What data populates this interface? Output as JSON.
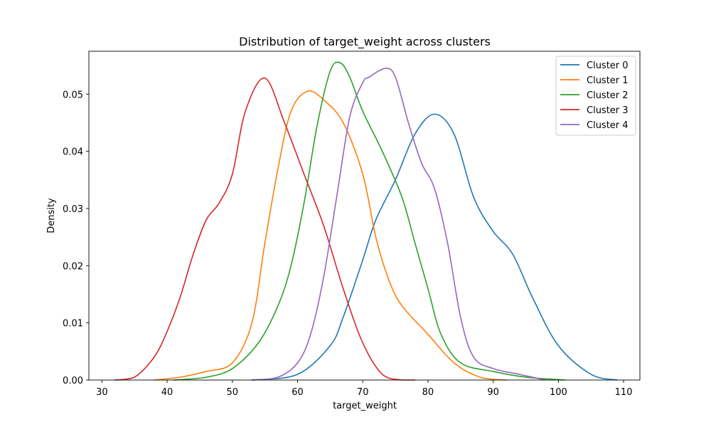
{
  "chart_data": {
    "type": "line",
    "title": "Distribution of target_weight across clusters",
    "xlabel": "target_weight",
    "ylabel": "Density",
    "xlim": [
      28,
      112.5
    ],
    "ylim": [
      0,
      0.0575
    ],
    "x_ticks": [
      30,
      40,
      50,
      60,
      70,
      80,
      90,
      100,
      110
    ],
    "y_ticks": [
      0.0,
      0.01,
      0.02,
      0.03,
      0.04,
      0.05
    ],
    "y_tick_labels": [
      "0.00",
      "0.01",
      "0.02",
      "0.03",
      "0.04",
      "0.05"
    ],
    "grid": false,
    "legend_position": "top-right",
    "series": [
      {
        "name": "Cluster 0",
        "color": "#1f77b4",
        "x": [
          53,
          60,
          65,
          67,
          70,
          72,
          75,
          78,
          81,
          84,
          87,
          90,
          93,
          96,
          100,
          105,
          109
        ],
        "y": [
          0.0,
          0.001,
          0.006,
          0.011,
          0.021,
          0.028,
          0.035,
          0.043,
          0.0465,
          0.043,
          0.032,
          0.026,
          0.022,
          0.0145,
          0.006,
          0.001,
          0.0
        ]
      },
      {
        "name": "Cluster 1",
        "color": "#ff7f0e",
        "x": [
          38,
          42,
          46,
          50,
          53,
          55,
          57,
          59,
          61.5,
          64,
          67,
          70,
          72,
          74,
          76,
          80,
          84,
          88,
          92
        ],
        "y": [
          0.0,
          0.0005,
          0.0015,
          0.003,
          0.01,
          0.024,
          0.037,
          0.047,
          0.0505,
          0.049,
          0.045,
          0.036,
          0.025,
          0.0175,
          0.013,
          0.008,
          0.003,
          0.0005,
          0.0
        ]
      },
      {
        "name": "Cluster 2",
        "color": "#2ca02c",
        "x": [
          41,
          46,
          50,
          54,
          57,
          59,
          61,
          63,
          65,
          66.5,
          68,
          70,
          73,
          76,
          78,
          80,
          82,
          85,
          90,
          95,
          101
        ],
        "y": [
          0.0,
          0.0005,
          0.002,
          0.0065,
          0.013,
          0.02,
          0.031,
          0.0445,
          0.054,
          0.0555,
          0.053,
          0.047,
          0.04,
          0.032,
          0.024,
          0.016,
          0.008,
          0.003,
          0.0015,
          0.0005,
          0.0
        ]
      },
      {
        "name": "Cluster 3",
        "color": "#d62728",
        "x": [
          32,
          35,
          38,
          40,
          42,
          44,
          46,
          48,
          50,
          52,
          55,
          58,
          61,
          64,
          67,
          70,
          73,
          76,
          78
        ],
        "y": [
          0.0,
          0.0005,
          0.004,
          0.0085,
          0.0145,
          0.022,
          0.028,
          0.031,
          0.036,
          0.047,
          0.0528,
          0.045,
          0.036,
          0.027,
          0.016,
          0.0065,
          0.001,
          0.0,
          0.0
        ]
      },
      {
        "name": "Cluster 4",
        "color": "#9467bd",
        "x": [
          53,
          57,
          60,
          62,
          64,
          66,
          68,
          70,
          71,
          73.5,
          75,
          77,
          79,
          81,
          83,
          85,
          87,
          90,
          94,
          98
        ],
        "y": [
          0.0,
          0.0005,
          0.003,
          0.008,
          0.018,
          0.032,
          0.046,
          0.052,
          0.053,
          0.0545,
          0.053,
          0.045,
          0.038,
          0.0335,
          0.024,
          0.011,
          0.004,
          0.002,
          0.001,
          0.0
        ]
      }
    ]
  }
}
